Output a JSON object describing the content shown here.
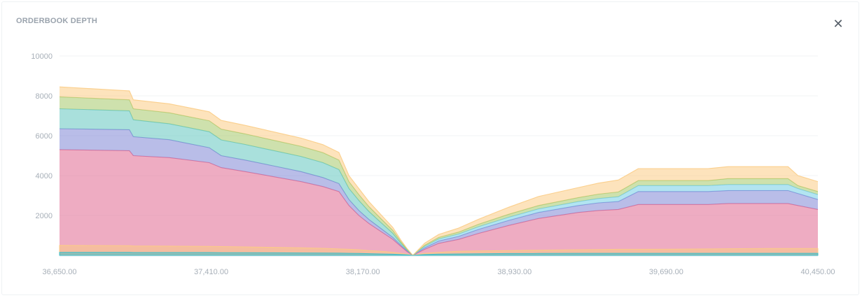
{
  "header": {
    "title": "ORDERBOOK DEPTH",
    "close_icon": "close-icon"
  },
  "chart_data": {
    "type": "area",
    "title": "ORDERBOOK DEPTH",
    "xlabel": "",
    "ylabel": "",
    "xlim": [
      36650,
      40450
    ],
    "ylim": [
      0,
      10000
    ],
    "grid": true,
    "legend": "none",
    "x_ticks": [
      "36,650.00",
      "37,410.00",
      "38,170.00",
      "38,930.00",
      "39,690.00",
      "40,450.00"
    ],
    "y_ticks": [
      "10000",
      "8000",
      "6000",
      "4000",
      "2000"
    ],
    "bids": {
      "x": [
        36650,
        37000,
        37020,
        37200,
        37400,
        37460,
        37580,
        37720,
        37860,
        37970,
        38050,
        38100,
        38150,
        38200,
        38260,
        38320,
        38360,
        38390,
        38420
      ],
      "series": [
        {
          "color": "#e0688f",
          "values": [
            5300,
            5250,
            5000,
            4900,
            4650,
            4400,
            4200,
            3950,
            3700,
            3450,
            3200,
            2500,
            2000,
            1600,
            1200,
            800,
            450,
            200,
            0
          ]
        },
        {
          "color": "#7f86d6",
          "values": [
            1050,
            1050,
            950,
            900,
            750,
            600,
            580,
            540,
            500,
            450,
            400,
            300,
            250,
            200,
            150,
            100,
            60,
            40,
            0
          ]
        },
        {
          "color": "#63c7c0",
          "values": [
            1000,
            950,
            850,
            800,
            800,
            790,
            780,
            770,
            760,
            750,
            700,
            550,
            500,
            400,
            300,
            200,
            100,
            50,
            0
          ]
        },
        {
          "color": "#a6c96a",
          "values": [
            600,
            550,
            550,
            550,
            550,
            540,
            530,
            520,
            510,
            500,
            480,
            350,
            300,
            250,
            200,
            150,
            80,
            40,
            0
          ]
        },
        {
          "color": "#fbcc85",
          "values": [
            500,
            450,
            450,
            450,
            450,
            440,
            430,
            420,
            410,
            400,
            380,
            300,
            300,
            250,
            200,
            150,
            80,
            30,
            0
          ]
        }
      ],
      "base_layers": [
        {
          "color": "#fbcc85",
          "values": [
            500,
            480,
            470,
            460,
            450,
            440,
            420,
            400,
            380,
            350,
            320,
            300,
            280,
            240,
            200,
            150,
            100,
            60,
            0
          ]
        },
        {
          "color": "#3dbfc9",
          "values": [
            150,
            150,
            140,
            140,
            140,
            135,
            130,
            125,
            120,
            115,
            110,
            100,
            95,
            85,
            70,
            55,
            40,
            25,
            0
          ]
        }
      ]
    },
    "asks": {
      "x": [
        38420,
        38480,
        38550,
        38650,
        38750,
        38900,
        39050,
        39250,
        39350,
        39450,
        39550,
        39700,
        39900,
        40000,
        40200,
        40300,
        40350,
        40450
      ],
      "series": [
        {
          "color": "#e0688f",
          "values": [
            0,
            300,
            600,
            800,
            1100,
            1500,
            1850,
            2150,
            2250,
            2300,
            2550,
            2550,
            2550,
            2600,
            2600,
            2600,
            2500,
            2300
          ]
        },
        {
          "color": "#7f86d6",
          "values": [
            0,
            80,
            120,
            150,
            200,
            250,
            300,
            350,
            380,
            400,
            650,
            650,
            650,
            650,
            650,
            650,
            600,
            500
          ]
        },
        {
          "color": "#72cde6",
          "values": [
            0,
            70,
            100,
            120,
            140,
            160,
            180,
            200,
            220,
            240,
            300,
            300,
            300,
            300,
            300,
            300,
            250,
            250
          ]
        },
        {
          "color": "#a6c96a",
          "values": [
            0,
            60,
            80,
            100,
            120,
            150,
            170,
            200,
            220,
            240,
            250,
            250,
            250,
            300,
            300,
            300,
            150,
            150
          ]
        },
        {
          "color": "#fbcc85",
          "values": [
            0,
            100,
            150,
            200,
            250,
            350,
            450,
            500,
            550,
            600,
            600,
            600,
            600,
            600,
            600,
            600,
            500,
            500
          ]
        }
      ],
      "base_layers": [
        {
          "color": "#fbcc85",
          "values": [
            0,
            100,
            150,
            200,
            220,
            240,
            260,
            280,
            290,
            300,
            300,
            310,
            320,
            330,
            340,
            340,
            340,
            340
          ]
        },
        {
          "color": "#3dbfc9",
          "values": [
            0,
            40,
            60,
            70,
            80,
            90,
            95,
            100,
            100,
            100,
            100,
            100,
            100,
            100,
            100,
            100,
            100,
            100
          ]
        }
      ]
    }
  }
}
